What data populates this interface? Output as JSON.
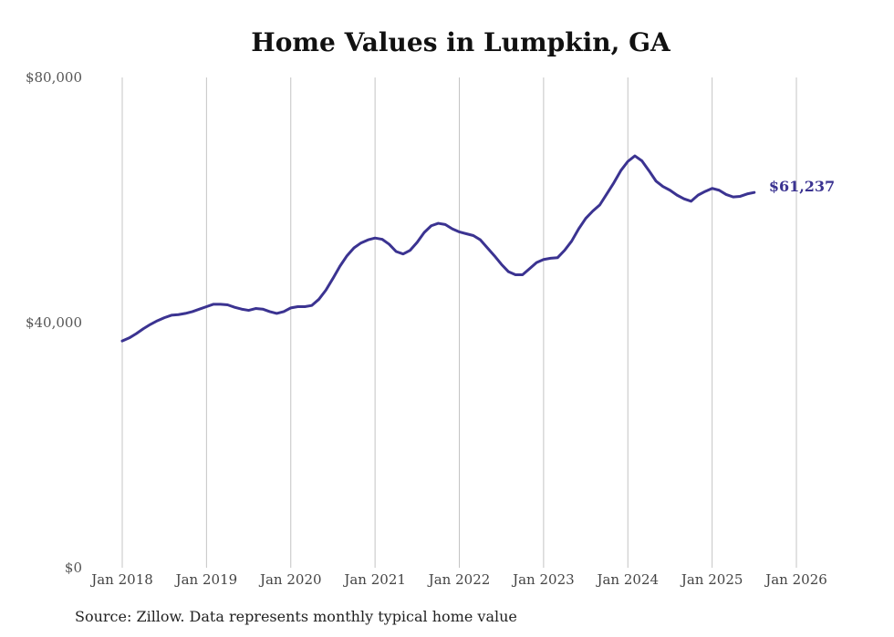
{
  "chart_data": {
    "type": "line",
    "title": "Home Values in Lumpkin, GA",
    "xlabel": "",
    "ylabel": "",
    "ylim": [
      0,
      80000
    ],
    "yticks": [
      {
        "value": 0,
        "label": "$0"
      },
      {
        "value": 40000,
        "label": "$40,000"
      },
      {
        "value": 80000,
        "label": "$80,000"
      }
    ],
    "xticks": [
      "Jan 2018",
      "Jan 2019",
      "Jan 2020",
      "Jan 2021",
      "Jan 2022",
      "Jan 2023",
      "Jan 2024",
      "Jan 2025",
      "Jan 2026"
    ],
    "grid": "vertical",
    "series": [
      {
        "name": "Typical home value",
        "color": "#3b3391",
        "start": "Jan 2018",
        "end_label": "$61,237",
        "values": [
          37000,
          37500,
          38200,
          39000,
          39700,
          40300,
          40800,
          41200,
          41300,
          41500,
          41800,
          42200,
          42600,
          43000,
          43000,
          42900,
          42500,
          42200,
          42000,
          42300,
          42200,
          41800,
          41500,
          41800,
          42400,
          42600,
          42600,
          42800,
          43800,
          45300,
          47200,
          49200,
          50900,
          52200,
          53000,
          53500,
          53800,
          53600,
          52800,
          51600,
          51200,
          51800,
          53100,
          54700,
          55800,
          56200,
          56000,
          55300,
          54800,
          54500,
          54200,
          53500,
          52200,
          50900,
          49500,
          48300,
          47800,
          47800,
          48800,
          49800,
          50300,
          50500,
          50600,
          51800,
          53300,
          55300,
          57000,
          58200,
          59200,
          61000,
          62800,
          64800,
          66300,
          67200,
          66400,
          64800,
          63100,
          62200,
          61600,
          60800,
          60200,
          59800,
          60800,
          61400,
          61900,
          61600,
          60900,
          60500,
          60600,
          61000,
          61237
        ]
      }
    ]
  },
  "source_note": "Source: Zillow. Data represents monthly typical home value"
}
